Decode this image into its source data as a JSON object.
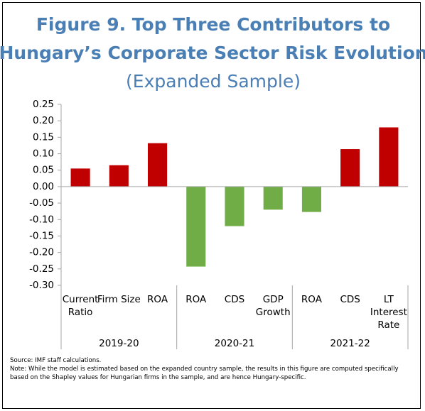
{
  "chart_data": {
    "type": "bar",
    "title": [
      "Figure 9. Top Three Contributors to",
      "Hungary’s Corporate Sector Risk Evolution"
    ],
    "subtitle": "(Expanded Sample)",
    "groups": [
      {
        "name": "2019-20",
        "categories": [
          "Current Ratio",
          "Firm Size",
          "ROA"
        ],
        "values": [
          0.055,
          0.065,
          0.132
        ]
      },
      {
        "name": "2020-21",
        "categories": [
          "ROA",
          "CDS",
          "GDP Growth"
        ],
        "values": [
          -0.243,
          -0.12,
          -0.07
        ]
      },
      {
        "name": "2021-22",
        "categories": [
          "ROA",
          "CDS",
          "LT Interest Rate"
        ],
        "values": [
          -0.077,
          0.114,
          0.18
        ]
      }
    ],
    "positive_color": "#c00000",
    "negative_color": "#70ad47",
    "ylim": [
      -0.3,
      0.25
    ],
    "yticks": [
      0.25,
      {
        "value": 0.2,
        "label": "0.20"
      },
      0.15,
      {
        "value": 0.1,
        "label": "0.10"
      },
      0.05,
      {
        "value": 0,
        "label": "0.00"
      },
      -0.05,
      {
        "value": -0.1,
        "label": "-0.10"
      },
      -0.15,
      {
        "value": -0.2,
        "label": "-0.20"
      },
      -0.25,
      {
        "value": -0.3,
        "label": "-0.30"
      }
    ],
    "grid": false,
    "source": "Source: IMF staff calculations.",
    "note": "Note: While the model is estimated based on the expanded country sample, the results in this figure are computed specifically based on the Shapley values for Hungarian firms in the sample, and are hence Hungary-specific."
  }
}
